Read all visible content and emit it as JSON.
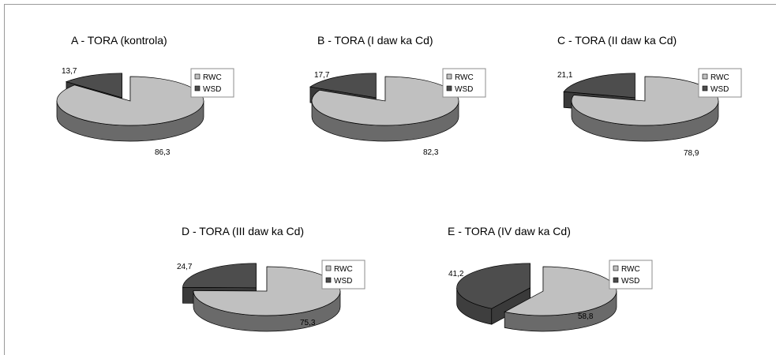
{
  "chart_data": [
    {
      "type": "pie",
      "title": "A - TORA (kontrola)",
      "categories": [
        "RWC",
        "WSD"
      ],
      "values": [
        86.3,
        13.7
      ],
      "value_labels": [
        "86,3",
        "13,7"
      ],
      "colors": [
        "#c0c0c0",
        "#4d4d4d"
      ],
      "three_d": true,
      "exploded": "WSD",
      "legend": "right"
    },
    {
      "type": "pie",
      "title": "B - TORA (I daw ka Cd)",
      "categories": [
        "RWC",
        "WSD"
      ],
      "values": [
        82.3,
        17.7
      ],
      "value_labels": [
        "82,3",
        "17,7"
      ],
      "colors": [
        "#c0c0c0",
        "#4d4d4d"
      ],
      "three_d": true,
      "exploded": "WSD",
      "legend": "right"
    },
    {
      "type": "pie",
      "title": "C - TORA (II daw ka Cd)",
      "categories": [
        "RWC",
        "WSD"
      ],
      "values": [
        78.9,
        21.1
      ],
      "value_labels": [
        "78,9",
        "21,1"
      ],
      "colors": [
        "#c0c0c0",
        "#4d4d4d"
      ],
      "three_d": true,
      "exploded": "WSD",
      "legend": "right"
    },
    {
      "type": "pie",
      "title": "D - TORA (III daw ka Cd)",
      "categories": [
        "RWC",
        "WSD"
      ],
      "values": [
        75.3,
        24.7
      ],
      "value_labels": [
        "75,3",
        "24,7"
      ],
      "colors": [
        "#c0c0c0",
        "#4d4d4d"
      ],
      "three_d": true,
      "exploded": "WSD",
      "legend": "right"
    },
    {
      "type": "pie",
      "title": "E - TORA (IV daw ka Cd)",
      "categories": [
        "RWC",
        "WSD"
      ],
      "values": [
        58.8,
        41.2
      ],
      "value_labels": [
        "58,8",
        "41,2"
      ],
      "colors": [
        "#c0c0c0",
        "#4d4d4d"
      ],
      "three_d": true,
      "exploded": "WSD",
      "legend": "right"
    }
  ]
}
